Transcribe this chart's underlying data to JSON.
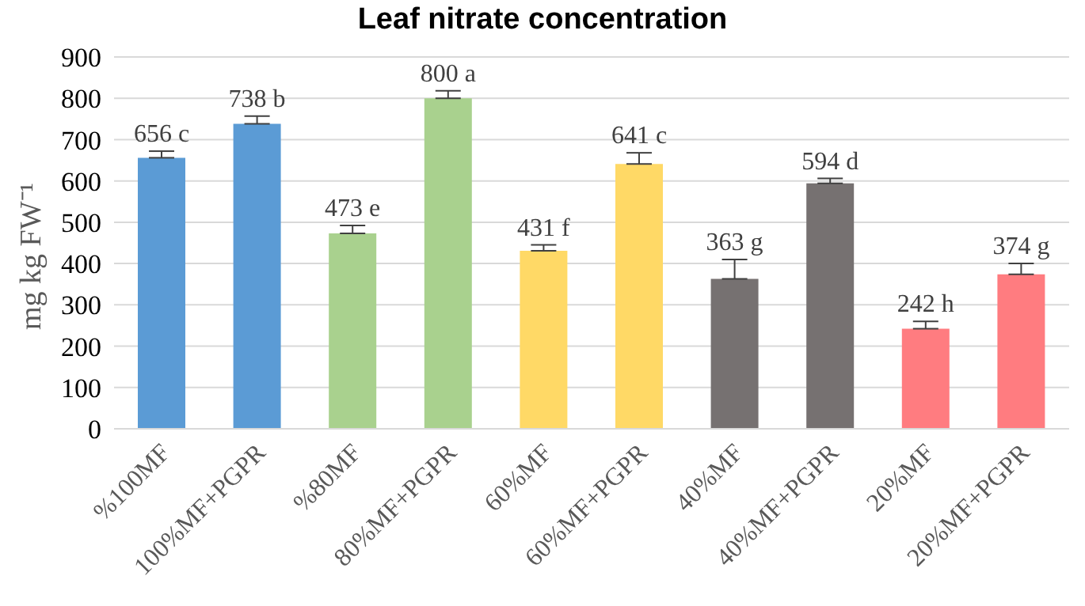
{
  "chart_data": {
    "type": "bar",
    "title": "Leaf nitrate concentration",
    "ylabel": "mg kg FW⁻¹",
    "categories": [
      "%100MF",
      "100%MF+PGPR",
      "%80MF",
      "80%MF+PGPR",
      "60%MF",
      "60%MF+PGPR",
      "40%MF",
      "40%MF+PGPR",
      "20%MF",
      "20%MF+PGPR"
    ],
    "values": [
      656,
      738,
      473,
      800,
      431,
      641,
      363,
      594,
      242,
      374
    ],
    "colors": [
      "#5b9bd5",
      "#5b9bd5",
      "#a9d18e",
      "#a9d18e",
      "#ffd966",
      "#ffd966",
      "#767171",
      "#767171",
      "#ff7c80",
      "#ff7c80"
    ],
    "errors": [
      [
        656,
        672
      ],
      [
        738,
        757
      ],
      [
        473,
        492
      ],
      [
        800,
        818
      ],
      [
        431,
        445
      ],
      [
        641,
        668
      ],
      [
        363,
        410
      ],
      [
        594,
        606
      ],
      [
        242,
        260
      ],
      [
        374,
        400
      ]
    ],
    "value_labels": [
      "656 c",
      "738 b",
      "473 e",
      "800 a",
      "431 f",
      "641 c",
      "363 g",
      "594 d",
      "242 h",
      "374 g"
    ],
    "ylim": [
      0,
      900
    ],
    "yticks": [
      0,
      100,
      200,
      300,
      400,
      500,
      600,
      700,
      800,
      900
    ],
    "grid": "y"
  }
}
